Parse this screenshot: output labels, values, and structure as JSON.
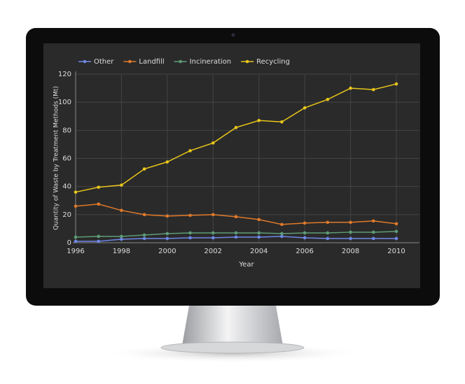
{
  "chart_data": {
    "type": "line",
    "x_label": "Year",
    "y_label": "Quantity of Waste by Treatment Methods (Mt)",
    "x": [
      1996,
      1997,
      1998,
      1999,
      2000,
      2001,
      2002,
      2003,
      2004,
      2005,
      2006,
      2007,
      2008,
      2009,
      2010
    ],
    "series": [
      {
        "name": "Other",
        "color": "#6f87e8",
        "values": [
          1,
          1,
          2.5,
          3,
          3,
          3.5,
          3.5,
          4,
          4,
          4.5,
          3.5,
          3,
          3,
          3,
          3
        ]
      },
      {
        "name": "Landfill",
        "color": "#e07a2a",
        "values": [
          26,
          27.5,
          23,
          20,
          19,
          19.5,
          20,
          18.5,
          16.5,
          13,
          14,
          14.5,
          14.5,
          15.5,
          13.5
        ]
      },
      {
        "name": "Incineration",
        "color": "#5e9c76",
        "values": [
          4,
          4.5,
          4.5,
          5.5,
          6.5,
          7,
          7,
          7,
          7,
          6.5,
          7,
          7,
          7.5,
          7.5,
          8
        ]
      },
      {
        "name": "Recycling",
        "color": "#e8c61a",
        "values": [
          36,
          39.5,
          41,
          52.5,
          57.5,
          65.5,
          71,
          82,
          87,
          86,
          96,
          102,
          110,
          109,
          113
        ]
      }
    ],
    "xlim": [
      1996,
      2011
    ],
    "xticks": [
      1996,
      1998,
      2000,
      2002,
      2004,
      2006,
      2008,
      2010
    ],
    "ylim": [
      0,
      120
    ],
    "yticks": [
      0,
      20,
      40,
      60,
      80,
      100,
      120
    ],
    "grid": true,
    "legend": "top-left"
  }
}
